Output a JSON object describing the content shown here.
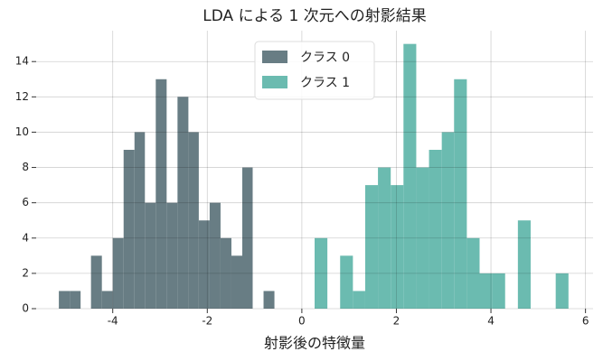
{
  "chart_data": {
    "type": "histogram",
    "title": "LDA による 1 次元への射影結果",
    "x_label": "射影後の特徴量",
    "series": [
      {
        "name": "クラス 0",
        "color": "#687d84",
        "bins": [
          -5.14,
          -4.91,
          -4.68,
          -4.46,
          -4.23,
          -4.0,
          -3.77,
          -3.54,
          -3.32,
          -3.09,
          -2.86,
          -2.63,
          -2.4,
          -2.18,
          -1.95,
          -1.72,
          -1.49,
          -1.26,
          -1.04,
          -0.81,
          -0.58
        ],
        "values": [
          1,
          1,
          0,
          3,
          1,
          4,
          9,
          10,
          6,
          13,
          6,
          12,
          10,
          5,
          6,
          4,
          3,
          8,
          0,
          1
        ]
      },
      {
        "name": "クラス 1",
        "color": "#6bbbb0",
        "bins": [
          0.27,
          0.54,
          0.81,
          1.08,
          1.34,
          1.61,
          1.88,
          2.15,
          2.42,
          2.69,
          2.96,
          3.22,
          3.49,
          3.76,
          4.03,
          4.3,
          4.57,
          4.84,
          5.1,
          5.37,
          5.64
        ],
        "values": [
          4,
          0,
          3,
          1,
          7,
          8,
          7,
          15,
          8,
          9,
          10,
          13,
          4,
          2,
          2,
          0,
          5,
          0,
          0,
          2
        ]
      }
    ],
    "xlim": [
      -5.62,
      6.16
    ],
    "xticks": [
      -4,
      -2,
      0,
      2,
      4,
      6
    ],
    "ylim": [
      0,
      15.75
    ],
    "yticks": [
      0,
      2,
      4,
      6,
      8,
      10,
      12,
      14
    ],
    "grid": true,
    "legend": "upper center"
  }
}
